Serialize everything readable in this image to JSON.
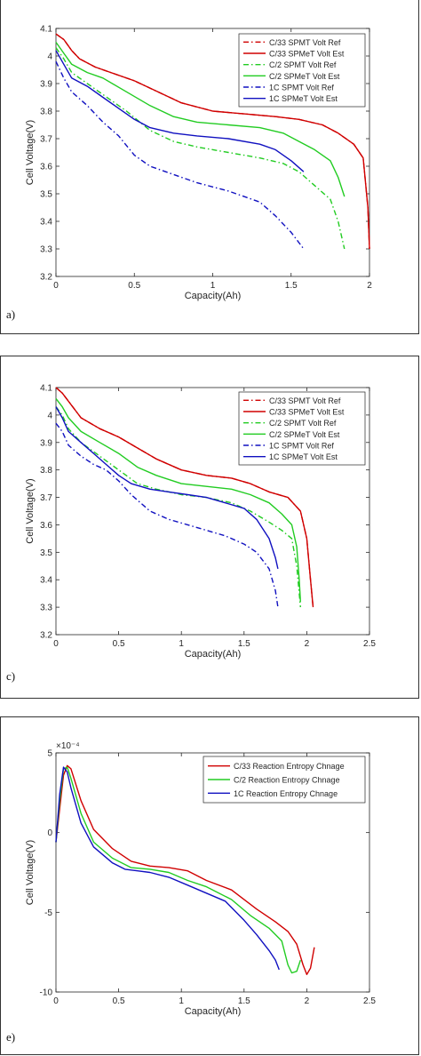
{
  "panels": [
    {
      "label": "a)"
    },
    {
      "label": "c)"
    },
    {
      "label": "e)"
    }
  ],
  "chart_data": [
    {
      "type": "line",
      "xlabel": "Capacity(Ah)",
      "ylabel": "Cell Voltage(V)",
      "xlim": [
        0,
        2
      ],
      "ylim": [
        3.2,
        4.1
      ],
      "xticks": [
        0,
        0.5,
        1,
        1.5,
        2
      ],
      "xtick_labels": [
        "0",
        "0.5",
        "1",
        "1.5",
        "2"
      ],
      "yticks": [
        3.2,
        3.3,
        3.4,
        3.5,
        3.6,
        3.7,
        3.8,
        3.9,
        4.0,
        4.1
      ],
      "ytick_labels": [
        "3.2",
        "3.3",
        "3.4",
        "3.5",
        "3.6",
        "3.7",
        "3.8",
        "3.9",
        "4",
        "4.1"
      ],
      "legend_position": "top-right",
      "series": [
        {
          "name": "C/33 SPMT Volt Ref",
          "color": "#d00000",
          "dash": "dashdot",
          "x": [
            0,
            0.05,
            0.1,
            0.15,
            0.25,
            0.35,
            0.5,
            0.65,
            0.8,
            1.0,
            1.2,
            1.4,
            1.55,
            1.7,
            1.8,
            1.9,
            1.96,
            1.99,
            2.0
          ],
          "y": [
            4.08,
            4.06,
            4.02,
            3.99,
            3.96,
            3.94,
            3.91,
            3.87,
            3.83,
            3.8,
            3.79,
            3.78,
            3.77,
            3.75,
            3.72,
            3.68,
            3.63,
            3.45,
            3.3
          ]
        },
        {
          "name": "C/33 SPMeT Volt Est",
          "color": "#d00000",
          "dash": "solid",
          "x": [
            0,
            0.05,
            0.1,
            0.15,
            0.25,
            0.35,
            0.5,
            0.65,
            0.8,
            1.0,
            1.2,
            1.4,
            1.55,
            1.7,
            1.8,
            1.9,
            1.96,
            1.99,
            2.0
          ],
          "y": [
            4.08,
            4.06,
            4.02,
            3.99,
            3.96,
            3.94,
            3.91,
            3.87,
            3.83,
            3.8,
            3.79,
            3.78,
            3.77,
            3.75,
            3.72,
            3.68,
            3.63,
            3.45,
            3.3
          ]
        },
        {
          "name": "C/2 SPMT Volt Ref",
          "color": "#22cc22",
          "dash": "dashdot",
          "x": [
            0,
            0.05,
            0.1,
            0.2,
            0.3,
            0.45,
            0.6,
            0.75,
            0.9,
            1.1,
            1.3,
            1.45,
            1.55,
            1.65,
            1.75,
            1.8,
            1.84
          ],
          "y": [
            4.03,
            3.99,
            3.94,
            3.9,
            3.86,
            3.8,
            3.73,
            3.69,
            3.67,
            3.65,
            3.63,
            3.61,
            3.58,
            3.53,
            3.48,
            3.4,
            3.3
          ]
        },
        {
          "name": "C/2 SPMeT Volt Est",
          "color": "#22cc22",
          "dash": "solid",
          "x": [
            0,
            0.05,
            0.1,
            0.2,
            0.3,
            0.45,
            0.6,
            0.75,
            0.9,
            1.1,
            1.3,
            1.45,
            1.55,
            1.65,
            1.75,
            1.8,
            1.84
          ],
          "y": [
            4.05,
            4.01,
            3.97,
            3.94,
            3.92,
            3.87,
            3.82,
            3.78,
            3.76,
            3.75,
            3.74,
            3.72,
            3.69,
            3.66,
            3.62,
            3.56,
            3.49
          ]
        },
        {
          "name": "1C SPMT Volt Ref",
          "color": "#1010c0",
          "dash": "dashdot",
          "x": [
            0,
            0.05,
            0.1,
            0.2,
            0.3,
            0.4,
            0.5,
            0.6,
            0.75,
            0.9,
            1.1,
            1.3,
            1.4,
            1.5,
            1.58
          ],
          "y": [
            3.98,
            3.92,
            3.87,
            3.82,
            3.76,
            3.71,
            3.64,
            3.6,
            3.57,
            3.54,
            3.51,
            3.47,
            3.42,
            3.36,
            3.3
          ]
        },
        {
          "name": "1C SPMeT Volt Est",
          "color": "#1010c0",
          "dash": "solid",
          "x": [
            0,
            0.05,
            0.1,
            0.2,
            0.3,
            0.4,
            0.5,
            0.6,
            0.75,
            0.9,
            1.1,
            1.3,
            1.4,
            1.5,
            1.58
          ],
          "y": [
            4.02,
            3.97,
            3.92,
            3.89,
            3.85,
            3.81,
            3.77,
            3.74,
            3.72,
            3.71,
            3.7,
            3.68,
            3.66,
            3.62,
            3.58
          ]
        }
      ]
    },
    {
      "type": "line",
      "xlabel": "Capacity(Ah)",
      "ylabel": "Cell Voltage(V)",
      "xlim": [
        0,
        2.5
      ],
      "ylim": [
        3.2,
        4.1
      ],
      "xticks": [
        0,
        0.5,
        1,
        1.5,
        2,
        2.5
      ],
      "xtick_labels": [
        "0",
        "0.5",
        "1",
        "1.5",
        "2",
        "2.5"
      ],
      "yticks": [
        3.2,
        3.3,
        3.4,
        3.5,
        3.6,
        3.7,
        3.8,
        3.9,
        4.0,
        4.1
      ],
      "ytick_labels": [
        "3.2",
        "3.3",
        "3.4",
        "3.5",
        "3.6",
        "3.7",
        "3.8",
        "3.9",
        "4",
        "4.1"
      ],
      "legend_position": "top-right",
      "series": [
        {
          "name": "C/33 SPMT Volt Ref",
          "color": "#d00000",
          "dash": "dashdot",
          "x": [
            0,
            0.05,
            0.1,
            0.2,
            0.35,
            0.5,
            0.65,
            0.8,
            1.0,
            1.2,
            1.4,
            1.55,
            1.7,
            1.85,
            1.95,
            2.0,
            2.03,
            2.05
          ],
          "y": [
            4.1,
            4.08,
            4.05,
            3.99,
            3.95,
            3.92,
            3.88,
            3.84,
            3.8,
            3.78,
            3.77,
            3.75,
            3.72,
            3.7,
            3.65,
            3.55,
            3.4,
            3.3
          ]
        },
        {
          "name": "C/33 SPMeT Volt Est",
          "color": "#d00000",
          "dash": "solid",
          "x": [
            0,
            0.05,
            0.1,
            0.2,
            0.35,
            0.5,
            0.65,
            0.8,
            1.0,
            1.2,
            1.4,
            1.55,
            1.7,
            1.85,
            1.95,
            2.0,
            2.03,
            2.05
          ],
          "y": [
            4.1,
            4.08,
            4.05,
            3.99,
            3.95,
            3.92,
            3.88,
            3.84,
            3.8,
            3.78,
            3.77,
            3.75,
            3.72,
            3.7,
            3.65,
            3.55,
            3.4,
            3.3
          ]
        },
        {
          "name": "C/2 SPMT Volt Ref",
          "color": "#22cc22",
          "dash": "dashdot",
          "x": [
            0,
            0.05,
            0.1,
            0.2,
            0.35,
            0.5,
            0.65,
            0.8,
            1.0,
            1.2,
            1.4,
            1.55,
            1.7,
            1.8,
            1.88,
            1.92,
            1.94,
            1.95
          ],
          "y": [
            4.03,
            4.0,
            3.95,
            3.9,
            3.85,
            3.8,
            3.75,
            3.73,
            3.71,
            3.7,
            3.68,
            3.65,
            3.61,
            3.58,
            3.55,
            3.45,
            3.35,
            3.3
          ]
        },
        {
          "name": "C/2 SPMeT Volt Est",
          "color": "#22cc22",
          "dash": "solid",
          "x": [
            0,
            0.05,
            0.1,
            0.2,
            0.35,
            0.5,
            0.65,
            0.8,
            1.0,
            1.2,
            1.4,
            1.55,
            1.7,
            1.8,
            1.88,
            1.92,
            1.94,
            1.95
          ],
          "y": [
            4.06,
            4.03,
            3.99,
            3.94,
            3.9,
            3.86,
            3.81,
            3.78,
            3.75,
            3.74,
            3.73,
            3.71,
            3.68,
            3.64,
            3.6,
            3.52,
            3.4,
            3.32
          ]
        },
        {
          "name": "1C SPMT Volt Ref",
          "color": "#1010c0",
          "dash": "dashdot",
          "x": [
            0,
            0.05,
            0.1,
            0.2,
            0.3,
            0.4,
            0.5,
            0.6,
            0.75,
            0.9,
            1.05,
            1.2,
            1.35,
            1.5,
            1.6,
            1.7,
            1.75,
            1.77
          ],
          "y": [
            3.97,
            3.94,
            3.89,
            3.85,
            3.82,
            3.8,
            3.76,
            3.71,
            3.65,
            3.62,
            3.6,
            3.58,
            3.56,
            3.53,
            3.5,
            3.44,
            3.36,
            3.3
          ]
        },
        {
          "name": "1C SPMeT Volt Est",
          "color": "#1010c0",
          "dash": "solid",
          "x": [
            0,
            0.05,
            0.1,
            0.2,
            0.3,
            0.4,
            0.5,
            0.6,
            0.75,
            0.9,
            1.05,
            1.2,
            1.35,
            1.5,
            1.6,
            1.7,
            1.75,
            1.77
          ],
          "y": [
            4.03,
            3.99,
            3.94,
            3.9,
            3.86,
            3.82,
            3.78,
            3.75,
            3.73,
            3.72,
            3.71,
            3.7,
            3.68,
            3.66,
            3.62,
            3.55,
            3.48,
            3.44
          ]
        }
      ]
    },
    {
      "type": "line",
      "xlabel": "Capacity(Ah)",
      "ylabel": "Cell Voltage(V)",
      "y_multiplier_label": "×10⁻⁴",
      "xlim": [
        0,
        2.5
      ],
      "ylim": [
        -10,
        5
      ],
      "xticks": [
        0,
        0.5,
        1,
        1.5,
        2,
        2.5
      ],
      "xtick_labels": [
        "0",
        "0.5",
        "1",
        "1.5",
        "2",
        "2.5"
      ],
      "yticks": [
        -10,
        -5,
        0,
        5
      ],
      "ytick_labels": [
        "-10",
        "-5",
        "0",
        "5"
      ],
      "legend_position": "top-right",
      "series": [
        {
          "name": "C/33 Reaction Entropy Chnage",
          "color": "#d00000",
          "dash": "solid",
          "x": [
            0,
            0.03,
            0.06,
            0.09,
            0.12,
            0.2,
            0.3,
            0.45,
            0.6,
            0.75,
            0.9,
            1.05,
            1.2,
            1.4,
            1.6,
            1.75,
            1.85,
            1.92,
            1.97,
            2.0,
            2.03,
            2.06
          ],
          "y": [
            -0.6,
            1.5,
            3.6,
            4.2,
            4.0,
            2.0,
            0.2,
            -1.0,
            -1.8,
            -2.1,
            -2.2,
            -2.4,
            -3.0,
            -3.6,
            -4.8,
            -5.6,
            -6.2,
            -7.0,
            -8.3,
            -8.9,
            -8.5,
            -7.2
          ]
        },
        {
          "name": "C/2 Reaction Entropy Chnage",
          "color": "#22cc22",
          "dash": "solid",
          "x": [
            0,
            0.03,
            0.06,
            0.09,
            0.12,
            0.2,
            0.3,
            0.45,
            0.6,
            0.75,
            0.9,
            1.05,
            1.2,
            1.4,
            1.55,
            1.7,
            1.8,
            1.85,
            1.88,
            1.92,
            1.95
          ],
          "y": [
            -0.6,
            2.0,
            4.0,
            4.1,
            3.4,
            1.2,
            -0.6,
            -1.6,
            -2.2,
            -2.3,
            -2.5,
            -3.0,
            -3.4,
            -4.2,
            -5.2,
            -6.0,
            -6.8,
            -8.3,
            -8.8,
            -8.7,
            -8.0
          ]
        },
        {
          "name": "1C Reaction Entropy Chnage",
          "color": "#1010c0",
          "dash": "solid",
          "x": [
            0,
            0.03,
            0.06,
            0.09,
            0.12,
            0.2,
            0.3,
            0.45,
            0.55,
            0.65,
            0.75,
            0.9,
            1.05,
            1.2,
            1.35,
            1.5,
            1.6,
            1.7,
            1.75,
            1.78
          ],
          "y": [
            -0.6,
            2.4,
            4.1,
            3.8,
            2.8,
            0.6,
            -0.9,
            -1.9,
            -2.3,
            -2.4,
            -2.5,
            -2.8,
            -3.3,
            -3.8,
            -4.3,
            -5.5,
            -6.4,
            -7.4,
            -8.0,
            -8.6
          ]
        }
      ]
    }
  ]
}
